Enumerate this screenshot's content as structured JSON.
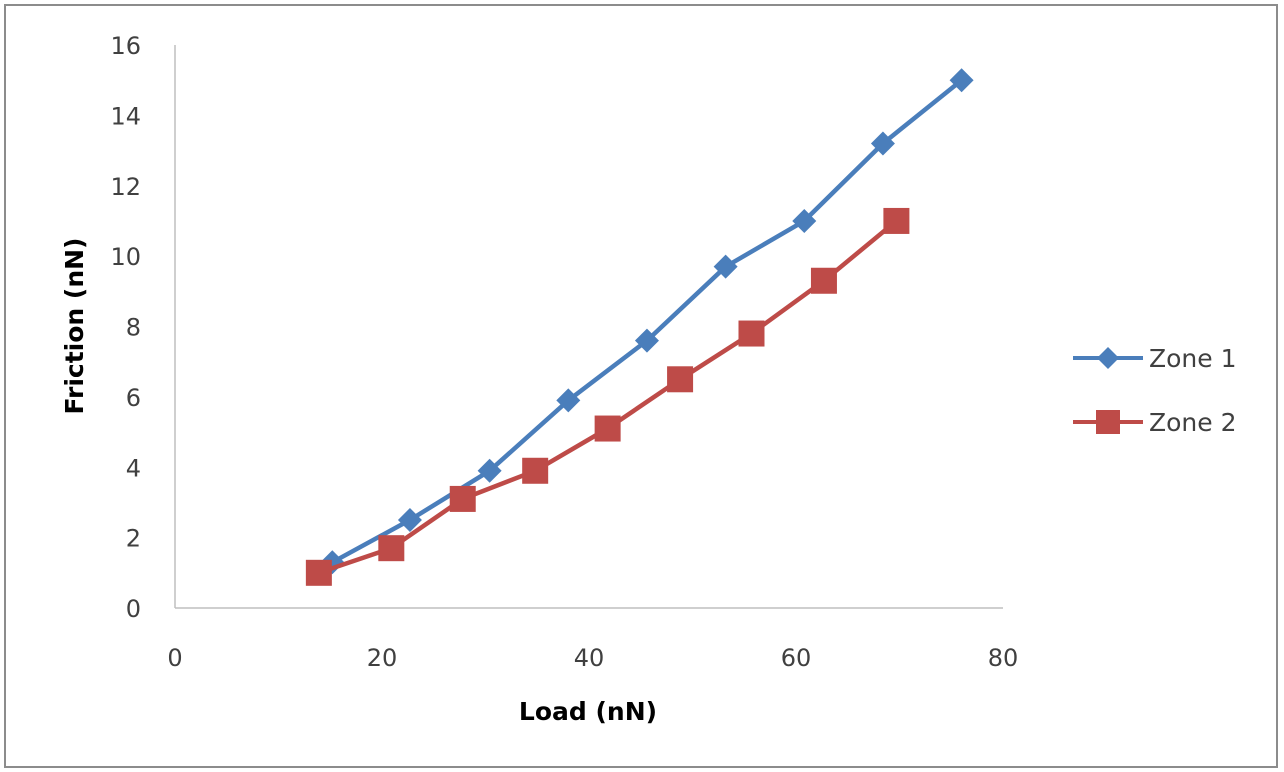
{
  "chart_data": {
    "type": "line",
    "xlabel": "Load (nN)",
    "ylabel": "Friction (nN)",
    "xlim": [
      0,
      80
    ],
    "ylim": [
      0,
      16
    ],
    "x_ticks": [
      "0",
      "20",
      "40",
      "60",
      "80"
    ],
    "y_ticks": [
      "0",
      "2",
      "4",
      "6",
      "8",
      "10",
      "12",
      "14",
      "16"
    ],
    "grid": false,
    "legend_position": "right",
    "series": [
      {
        "name": "Zone 1",
        "color": "#4a7ebb",
        "marker": "diamond",
        "x": [
          15.2,
          22.7,
          30.4,
          38,
          45.6,
          53.2,
          60.8,
          68.4,
          76
        ],
        "y": [
          1.3,
          2.5,
          3.9,
          5.9,
          7.6,
          9.7,
          11,
          13.2,
          15
        ]
      },
      {
        "name": "Zone 2",
        "color": "#be4b48",
        "marker": "square",
        "x": [
          13.9,
          20.9,
          27.8,
          34.8,
          41.8,
          48.8,
          55.7,
          62.7,
          69.7
        ],
        "y": [
          1,
          1.7,
          3.1,
          3.9,
          5.1,
          6.5,
          7.8,
          9.3,
          11
        ]
      }
    ]
  }
}
